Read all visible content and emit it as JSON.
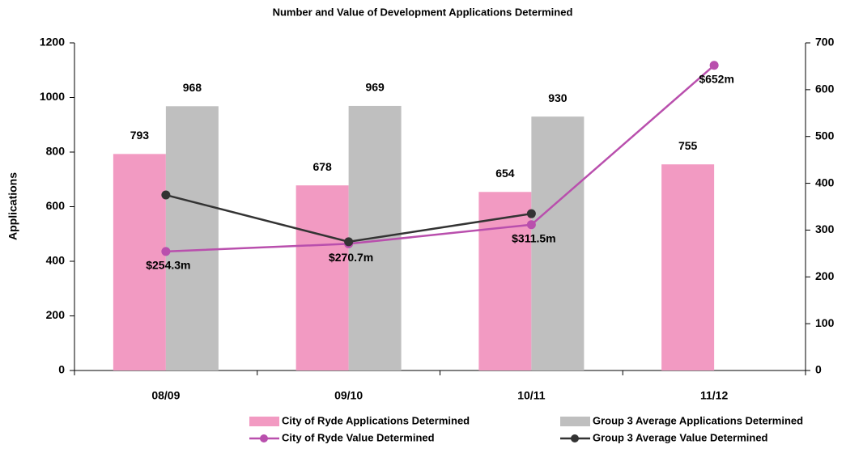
{
  "chart_data": {
    "type": "bar",
    "title": "Number and Value of Development Applications Determined",
    "y_label": "Applications",
    "categories": [
      "08/09",
      "09/10",
      "10/11",
      "11/12"
    ],
    "ylim": [
      0,
      1200
    ],
    "yticks": [
      0,
      200,
      400,
      600,
      800,
      1000,
      1200
    ],
    "y2lim": [
      0,
      700
    ],
    "y2ticks": [
      0,
      100,
      200,
      300,
      400,
      500,
      600,
      700
    ],
    "series": [
      {
        "name": "City of Ryde Applications  Determined",
        "type": "bar",
        "color": "#f29ac2",
        "values": [
          793,
          678,
          654,
          755
        ]
      },
      {
        "name": "Group 3 Average Applications  Determined",
        "type": "bar",
        "color": "#bfbfbf",
        "values": [
          968,
          969,
          930,
          null
        ]
      },
      {
        "name": "City of Ryde Value Determined",
        "type": "line",
        "axis": "y2",
        "color": "#b94fad",
        "values": [
          254.3,
          270.7,
          311.5,
          652
        ],
        "value_labels": [
          "$254.3m",
          "$270.7m",
          "$311.5m",
          "$652m"
        ]
      },
      {
        "name": "Group 3 Average Value Determined",
        "type": "line",
        "axis": "y2",
        "color": "#333333",
        "values": [
          375,
          275,
          335,
          null
        ]
      }
    ]
  }
}
